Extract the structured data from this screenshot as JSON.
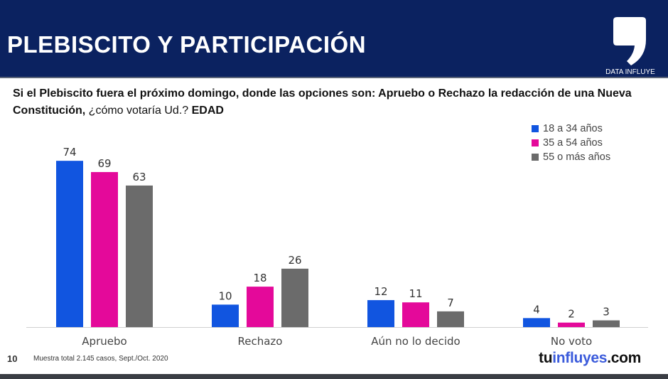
{
  "header": {
    "title": "PLEBISCITO Y PARTICIPACIÓN",
    "logo_text": "DATA INFLUYE",
    "background_color": "#0b2260"
  },
  "question": {
    "bold_part": "Si el Plebiscito fuera el próximo domingo, donde las opciones son: Apruebo o Rechazo la redacción de una Nueva Constitución,",
    "normal_part": " ¿cómo votaría Ud.? ",
    "bold_suffix": "EDAD"
  },
  "footer": {
    "page_number": "10",
    "note": "Muestra total 2.145 casos,  Sept./Oct. 2020",
    "brand_tu": "tu",
    "brand_influyes": "influyes",
    "brand_com": ".com"
  },
  "chart_data": {
    "type": "bar",
    "title": "",
    "xlabel": "",
    "ylabel": "",
    "ylim": [
      0,
      80
    ],
    "grid": false,
    "legend_position": "top-right",
    "categories": [
      "Apruebo",
      "Rechazo",
      "Aún no lo decido",
      "No voto"
    ],
    "series": [
      {
        "name": "18 a 34 años",
        "color": "#1155e0",
        "values": [
          74,
          10,
          12,
          4
        ]
      },
      {
        "name": "35 a 54 años",
        "color": "#e4099a",
        "values": [
          69,
          18,
          11,
          2
        ]
      },
      {
        "name": "55 o más años",
        "color": "#6b6b6b",
        "values": [
          63,
          26,
          7,
          3
        ]
      }
    ]
  }
}
